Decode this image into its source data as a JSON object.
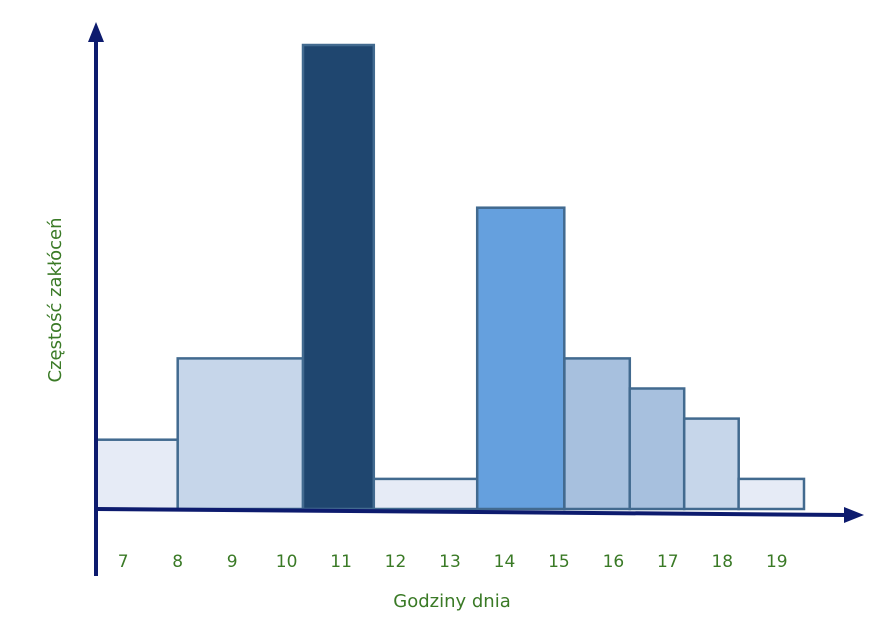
{
  "chart_data": {
    "type": "bar",
    "title": "",
    "xlabel": "Godziny dnia",
    "ylabel": "Częstość zakłóceń",
    "x_ticks": [
      "7",
      "8",
      "9",
      "10",
      "11",
      "12",
      "13",
      "14",
      "15",
      "16",
      "17",
      "18",
      "19"
    ],
    "bins": [
      {
        "from": 6.5,
        "to": 8.0,
        "value": 2.3,
        "color": "#e6ebf6"
      },
      {
        "from": 8.0,
        "to": 10.3,
        "value": 5.0,
        "color": "#c6d6ea"
      },
      {
        "from": 10.3,
        "to": 11.6,
        "value": 15.4,
        "color": "#1f466f"
      },
      {
        "from": 11.6,
        "to": 13.5,
        "value": 1.0,
        "color": "#e6ebf6"
      },
      {
        "from": 13.5,
        "to": 15.1,
        "value": 10.0,
        "color": "#65a0de"
      },
      {
        "from": 15.1,
        "to": 16.3,
        "value": 5.0,
        "color": "#a7c0de"
      },
      {
        "from": 16.3,
        "to": 17.3,
        "value": 4.0,
        "color": "#a7c0de"
      },
      {
        "from": 17.3,
        "to": 18.3,
        "value": 3.0,
        "color": "#c6d6ea"
      },
      {
        "from": 18.3,
        "to": 19.5,
        "value": 1.0,
        "color": "#e6ebf6"
      }
    ],
    "xlim": [
      6.5,
      19.5
    ],
    "ylim": [
      0,
      15.4
    ],
    "grid": false,
    "legend": false,
    "axis_color": "#0d1b6e",
    "label_color": "#3a7a26",
    "bar_edge_color": "#426a8f"
  }
}
